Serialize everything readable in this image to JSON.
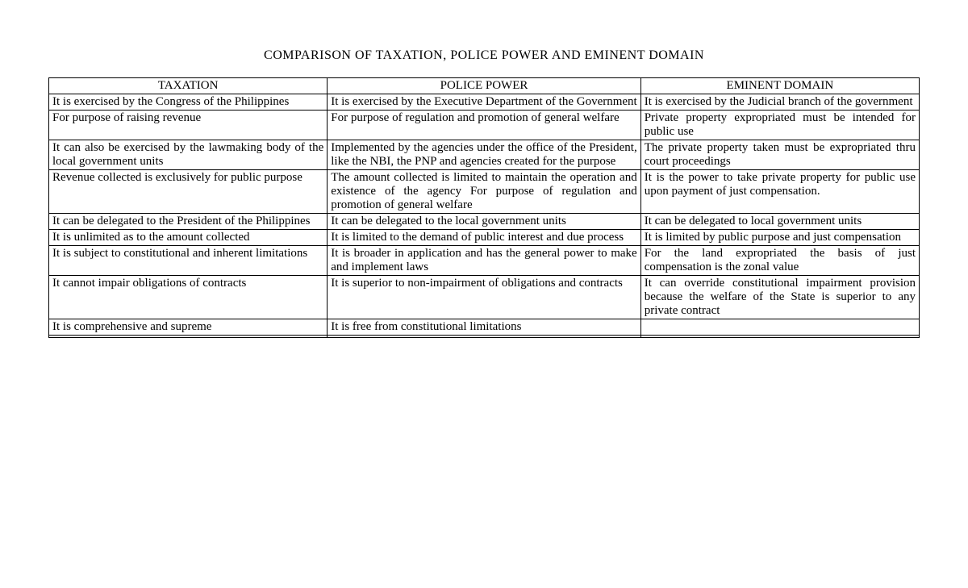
{
  "title": "COMPARISON OF TAXATION, POLICE POWER AND EMINENT DOMAIN",
  "headers": {
    "col1": "TAXATION",
    "col2": "POLICE POWER",
    "col3": "EMINENT DOMAIN"
  },
  "rows": [
    {
      "c1": "It is exercised by the Congress of the Philippines",
      "c2": "It is exercised by the Executive Department of the Government",
      "c3": "It is exercised by the Judicial branch of the government"
    },
    {
      "c1": "For purpose of raising revenue",
      "c2": "For purpose of regulation and promotion of general welfare",
      "c3": "Private property expropriated must be intended for public use"
    },
    {
      "c1": "It can also be exercised by the lawmaking body of the local government units",
      "c2": "Implemented by the agencies under the office of the President, like the NBI, the PNP and agencies created for the purpose",
      "c3": "The private property taken must be expropriated thru court proceedings"
    },
    {
      "c1": "Revenue collected is exclusively for public purpose",
      "c2": "The amount collected is limited to maintain the operation and existence of the agency\nFor purpose of regulation and promotion of general welfare",
      "c3": "It is the power to take private property for public use upon payment of just compensation."
    },
    {
      "c1": "It can be delegated to the President of the Philippines",
      "c2": "It can be delegated to the local government units",
      "c3": "It can be delegated to local government units"
    },
    {
      "c1": "It is unlimited as to the amount collected",
      "c2": "It is limited to the demand of public interest and due process",
      "c3": "It is limited by public purpose and just compensation"
    },
    {
      "c1": "It is subject to constitutional and inherent limitations",
      "c2": "It is broader in application and has the general power to make and implement laws",
      "c3": "For the land expropriated the basis of just compensation is the zonal value"
    },
    {
      "c1": "It cannot impair obligations of contracts",
      "c2": "It is superior to non-impairment of obligations and contracts",
      "c3": "It can override constitutional impairment provision because the welfare of the State is superior to any private contract"
    },
    {
      "c1": "It is comprehensive and supreme",
      "c2": "It is free from constitutional limitations",
      "c3": ""
    },
    {
      "c1": "",
      "c2": "",
      "c3": ""
    }
  ]
}
